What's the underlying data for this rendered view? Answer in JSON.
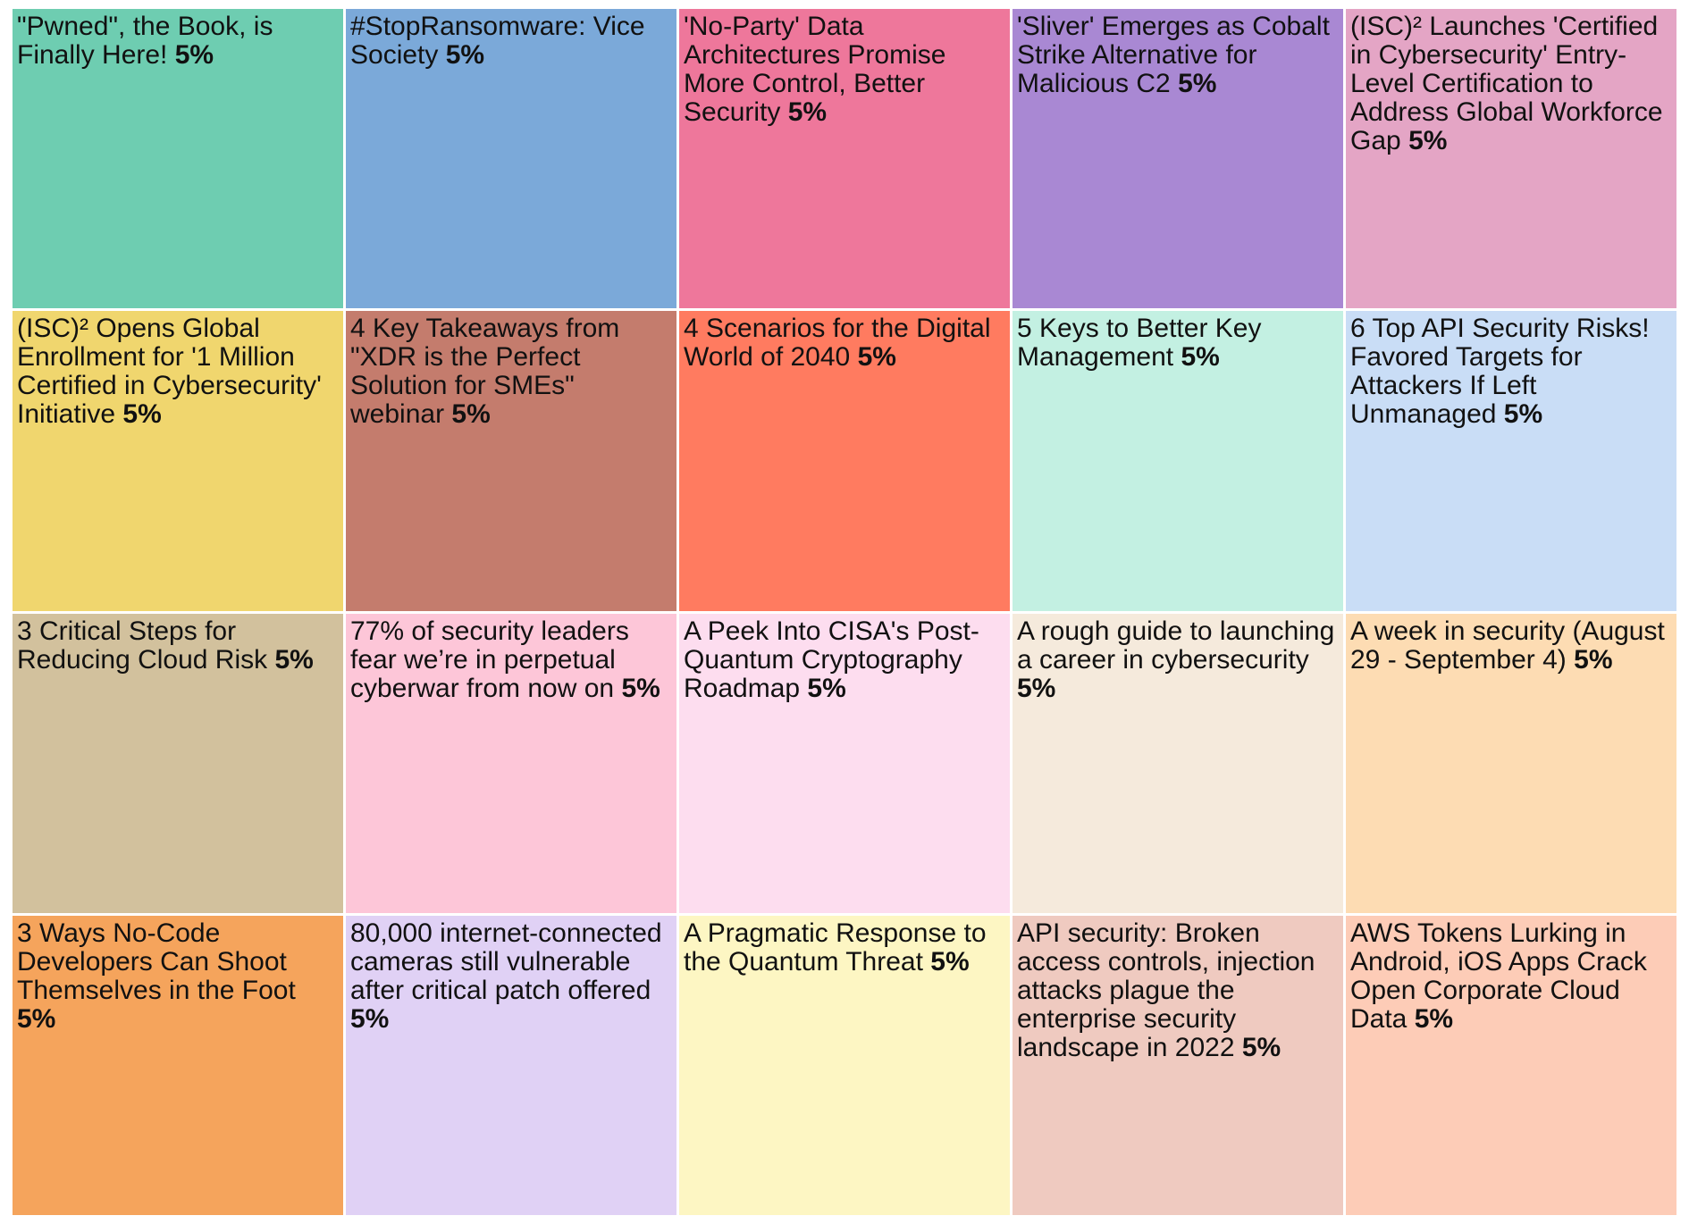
{
  "chart_data": {
    "type": "treemap",
    "unit": "%",
    "items": [
      {
        "label": "\"Pwned\", the Book, is Finally Here!",
        "value": 5,
        "value_label": "5%",
        "color": "#6ecdb1"
      },
      {
        "label": "#StopRansomware: Vice Society",
        "value": 5,
        "value_label": "5%",
        "color": "#7ba9d9"
      },
      {
        "label": "'No-Party' Data Architectures Promise More Control, Better Security",
        "value": 5,
        "value_label": "5%",
        "color": "#ee779b"
      },
      {
        "label": "'Sliver' Emerges as Cobalt Strike Alternative for Malicious C2",
        "value": 5,
        "value_label": "5%",
        "color": "#a988d3"
      },
      {
        "label": "(ISC)² Launches 'Certified in Cybersecurity' Entry-Level Certification to Address Global Workforce Gap",
        "value": 5,
        "value_label": "5%",
        "color": "#e4a5c5"
      },
      {
        "label": "(ISC)² Opens Global Enrollment for '1 Million Certified in Cybersecurity' Initiative",
        "value": 5,
        "value_label": "5%",
        "color": "#f0d66e"
      },
      {
        "label": "4 Key Takeaways from \"XDR is the Perfect Solution for SMEs\" webinar",
        "value": 5,
        "value_label": "5%",
        "color": "#c47c6d"
      },
      {
        "label": "4 Scenarios for the Digital World of 2040",
        "value": 5,
        "value_label": "5%",
        "color": "#ff7b60"
      },
      {
        "label": "5 Keys to Better Key Management",
        "value": 5,
        "value_label": "5%",
        "color": "#c3f0e2"
      },
      {
        "label": "6 Top API Security Risks! Favored Targets for Attackers If Left Unmanaged",
        "value": 5,
        "value_label": "5%",
        "color": "#c9ddf6"
      },
      {
        "label": "3 Critical Steps for Reducing Cloud Risk",
        "value": 5,
        "value_label": "5%",
        "color": "#d2c19d"
      },
      {
        "label": "77% of security leaders fear we’re in perpetual cyberwar from now on",
        "value": 5,
        "value_label": "5%",
        "color": "#fdc6d8"
      },
      {
        "label": "A Peek Into CISA's Post-Quantum Cryptography Roadmap",
        "value": 5,
        "value_label": "5%",
        "color": "#fdddef"
      },
      {
        "label": "A rough guide to launching a career in cybersecurity",
        "value": 5,
        "value_label": "5%",
        "color": "#f5eadc"
      },
      {
        "label": "A week in security (August 29 - September 4)",
        "value": 5,
        "value_label": "5%",
        "color": "#fddcb3"
      },
      {
        "label": "3 Ways No-Code Developers Can Shoot Themselves in the Foot",
        "value": 5,
        "value_label": "5%",
        "color": "#f5a45c"
      },
      {
        "label": "80,000 internet-connected cameras still vulnerable after critical patch offered",
        "value": 5,
        "value_label": "5%",
        "color": "#e0d1f5"
      },
      {
        "label": "A Pragmatic Response to the Quantum Threat",
        "value": 5,
        "value_label": "5%",
        "color": "#fdf6c3"
      },
      {
        "label": "API security: Broken access controls, injection attacks plague the enterprise security landscape in 2022",
        "value": 5,
        "value_label": "5%",
        "color": "#efcac0"
      },
      {
        "label": "AWS Tokens Lurking in Android, iOS Apps Crack Open Corporate Cloud Data",
        "value": 5,
        "value_label": "5%",
        "color": "#fdccb7"
      }
    ]
  }
}
